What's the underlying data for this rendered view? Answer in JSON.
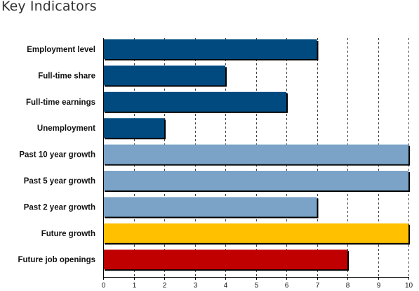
{
  "title": "Key Indicators",
  "chart_data": {
    "type": "bar",
    "orientation": "horizontal",
    "title": "Key Indicators",
    "xlabel": "",
    "ylabel": "",
    "xlim": [
      0,
      10
    ],
    "x_ticks": [
      "0",
      "1",
      "2",
      "3",
      "4",
      "5",
      "6",
      "7",
      "8",
      "9",
      "10"
    ],
    "grid": "vertical dashed",
    "categories": [
      "Employment level",
      "Full-time share",
      "Full-time earnings",
      "Unemployment",
      "Past 10 year growth",
      "Past 5 year growth",
      "Past 2 year growth",
      "Future growth",
      "Future job openings"
    ],
    "values": [
      7,
      4,
      6,
      2,
      10,
      10,
      7,
      10,
      8
    ],
    "colors": [
      "#004a80",
      "#004a80",
      "#004a80",
      "#004a80",
      "#7ba3c8",
      "#7ba3c8",
      "#7ba3c8",
      "#ffc000",
      "#c00000"
    ]
  }
}
